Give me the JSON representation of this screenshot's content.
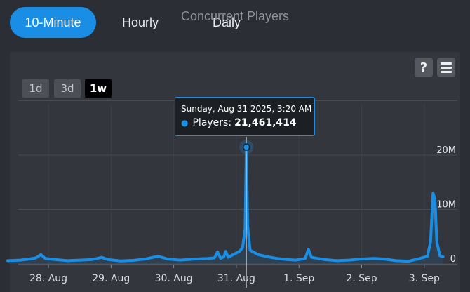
{
  "tabs": [
    {
      "label": "10-Minute",
      "active": true
    },
    {
      "label": "Hourly",
      "active": false
    },
    {
      "label": "Daily",
      "active": false
    }
  ],
  "chart_title": "Concurrent Players",
  "toolbar": {
    "help_label": "?",
    "help_icon": "question-mark-icon",
    "menu_icon": "hamburger-menu-icon"
  },
  "range_buttons": [
    {
      "label": "1d",
      "active": false
    },
    {
      "label": "3d",
      "active": false
    },
    {
      "label": "1w",
      "active": true
    }
  ],
  "tooltip": {
    "date": "Sunday, Aug 31 2025, 3:20 AM",
    "series_label": "Players:",
    "value": "21,461,414"
  },
  "colors": {
    "accent": "#1a8ee5",
    "background": "#2b2e34",
    "panel": "#33363d",
    "grid": "#474b52"
  },
  "chart_data": {
    "type": "area",
    "title": "Concurrent Players",
    "x_tick_labels": [
      "28. Aug",
      "29. Aug",
      "30. Aug",
      "31. Aug",
      "1. Sep",
      "2. Sep",
      "3. Sep"
    ],
    "y_tick_labels": [
      "0",
      "10M",
      "20M"
    ],
    "ylim": [
      0,
      30000000
    ],
    "xlim_days": [
      -0.65,
      6.3
    ],
    "grid": true,
    "series": [
      {
        "name": "Players",
        "points": [
          [
            -0.65,
            600000
          ],
          [
            -0.45,
            700000
          ],
          [
            -0.3,
            900000
          ],
          [
            -0.2,
            1100000
          ],
          [
            -0.12,
            1700000
          ],
          [
            -0.05,
            1000000
          ],
          [
            0.1,
            800000
          ],
          [
            0.3,
            600000
          ],
          [
            0.5,
            700000
          ],
          [
            0.7,
            800000
          ],
          [
            0.85,
            1200000
          ],
          [
            0.95,
            800000
          ],
          [
            1.15,
            550000
          ],
          [
            1.35,
            650000
          ],
          [
            1.55,
            900000
          ],
          [
            1.75,
            1400000
          ],
          [
            1.9,
            900000
          ],
          [
            2.1,
            700000
          ],
          [
            2.35,
            900000
          ],
          [
            2.55,
            1000000
          ],
          [
            2.65,
            1100000
          ],
          [
            2.7,
            2200000
          ],
          [
            2.75,
            1000000
          ],
          [
            2.8,
            1300000
          ],
          [
            2.83,
            2300000
          ],
          [
            2.87,
            1200000
          ],
          [
            2.95,
            1700000
          ],
          [
            3.05,
            2300000
          ],
          [
            3.1,
            3000000
          ],
          [
            3.14,
            6500000
          ],
          [
            3.16,
            21461414
          ],
          [
            3.18,
            7000000
          ],
          [
            3.22,
            2500000
          ],
          [
            3.35,
            1700000
          ],
          [
            3.5,
            1300000
          ],
          [
            3.65,
            1000000
          ],
          [
            3.8,
            800000
          ],
          [
            3.95,
            700000
          ],
          [
            4.1,
            1000000
          ],
          [
            4.15,
            2700000
          ],
          [
            4.2,
            1200000
          ],
          [
            4.4,
            800000
          ],
          [
            4.6,
            600000
          ],
          [
            4.8,
            700000
          ],
          [
            5.0,
            900000
          ],
          [
            5.2,
            1000000
          ],
          [
            5.35,
            900000
          ],
          [
            5.55,
            600000
          ],
          [
            5.75,
            500000
          ],
          [
            5.9,
            900000
          ],
          [
            6.05,
            1400000
          ],
          [
            6.1,
            4000000
          ],
          [
            6.14,
            13000000
          ],
          [
            6.17,
            12000000
          ],
          [
            6.2,
            4000000
          ],
          [
            6.25,
            1500000
          ],
          [
            6.3,
            1300000
          ]
        ]
      }
    ],
    "highlight_point": {
      "day": 3.16,
      "value": 21461414
    }
  }
}
